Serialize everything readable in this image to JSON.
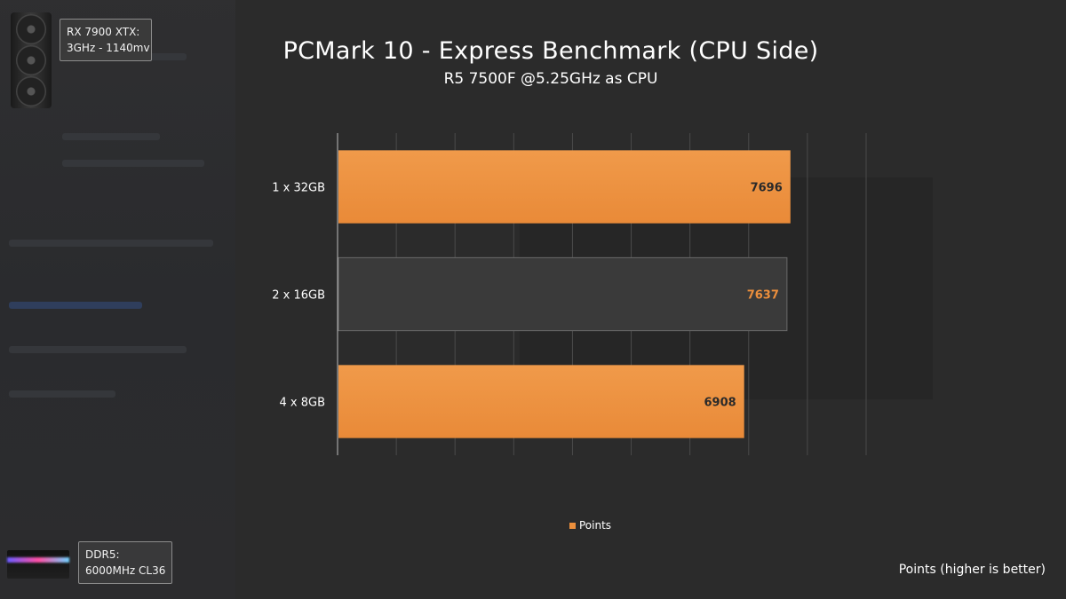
{
  "gpu_box": {
    "line1": "RX 7900 XTX:",
    "line2": "3GHz - 1140mv"
  },
  "ram_box": {
    "line1": "DDR5:",
    "line2": "6000MHz CL36"
  },
  "footnote": "Points (higher is better)",
  "colors": {
    "accent": "#ec8f3c",
    "dark_bar": "#3a3a3a",
    "background": "#2b2b2b"
  },
  "chart_data": {
    "type": "bar",
    "orientation": "horizontal",
    "title": "PCMark 10 - Express Benchmark (CPU Side)",
    "subtitle": "R5 7500F @5.25GHz as CPU",
    "categories": [
      "1 x 32GB",
      "2 x 16GB",
      "4 x 8GB"
    ],
    "series": [
      {
        "name": "Points",
        "values": [
          7696,
          7637,
          6908
        ]
      }
    ],
    "highlight_index": 1,
    "xlim": [
      0,
      9000
    ],
    "grid": true,
    "legend": "bottom"
  }
}
